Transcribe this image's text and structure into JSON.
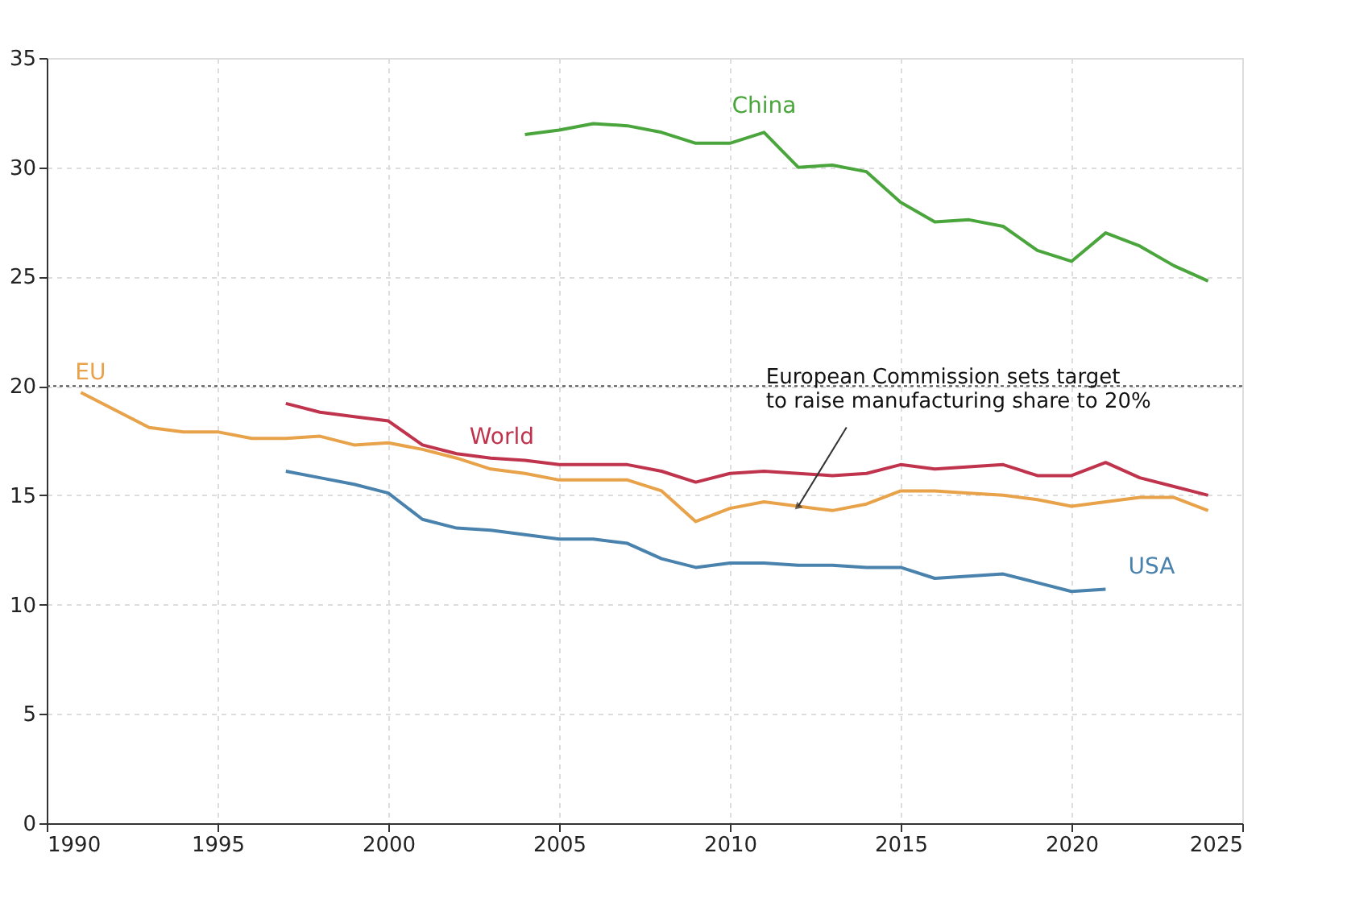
{
  "chart_data": {
    "type": "line",
    "xlim": [
      1990,
      2025
    ],
    "xticks": [
      1990,
      1995,
      2000,
      2005,
      2010,
      2015,
      2020,
      2025
    ],
    "ylim": [
      0,
      35
    ],
    "yticks": [
      0,
      5,
      10,
      15,
      20,
      25,
      30,
      35
    ],
    "grid": true,
    "marker": "none",
    "line_style": "solid",
    "series": [
      {
        "name": "China",
        "color": "#4aa63c",
        "x": [
          2004,
          2005,
          2006,
          2007,
          2008,
          2009,
          2010,
          2011,
          2012,
          2013,
          2014,
          2015,
          2016,
          2017,
          2018,
          2019,
          2020,
          2021,
          2022,
          2023,
          2024
        ],
        "values": [
          31.5,
          31.7,
          32.0,
          31.9,
          31.6,
          31.1,
          31.1,
          31.6,
          30.0,
          30.1,
          29.8,
          28.4,
          27.5,
          27.6,
          27.3,
          26.2,
          25.7,
          27.0,
          26.4,
          25.5,
          24.8
        ]
      },
      {
        "name": "EU",
        "color": "#e8a24a",
        "x": [
          1991,
          1992,
          1993,
          1994,
          1995,
          1996,
          1997,
          1998,
          1999,
          2000,
          2001,
          2002,
          2003,
          2004,
          2005,
          2006,
          2007,
          2008,
          2009,
          2010,
          2011,
          2012,
          2013,
          2014,
          2015,
          2016,
          2017,
          2018,
          2019,
          2020,
          2021,
          2022,
          2023,
          2024
        ],
        "values": [
          19.7,
          18.9,
          18.1,
          17.9,
          17.9,
          17.6,
          17.6,
          17.7,
          17.3,
          17.4,
          17.1,
          16.7,
          16.2,
          16.0,
          15.7,
          15.7,
          15.7,
          15.2,
          13.8,
          14.4,
          14.7,
          14.5,
          14.3,
          14.6,
          15.2,
          15.2,
          15.1,
          15.0,
          14.8,
          14.5,
          14.7,
          14.9,
          14.9,
          14.3
        ]
      },
      {
        "name": "World",
        "color": "#c0334d",
        "x": [
          1997,
          1998,
          1999,
          2000,
          2001,
          2002,
          2003,
          2004,
          2005,
          2006,
          2007,
          2008,
          2009,
          2010,
          2011,
          2012,
          2013,
          2014,
          2015,
          2016,
          2017,
          2018,
          2019,
          2020,
          2021,
          2022,
          2023,
          2024
        ],
        "values": [
          19.2,
          18.8,
          18.6,
          18.4,
          17.3,
          16.9,
          16.7,
          16.6,
          16.4,
          16.4,
          16.4,
          16.1,
          15.6,
          16.0,
          16.1,
          16.0,
          15.9,
          16.0,
          16.4,
          16.2,
          16.3,
          16.4,
          15.9,
          15.9,
          16.5,
          15.8,
          15.4,
          15.0
        ]
      },
      {
        "name": "USA",
        "color": "#4a82ae",
        "x": [
          1997,
          1998,
          1999,
          2000,
          2001,
          2002,
          2003,
          2004,
          2005,
          2006,
          2007,
          2008,
          2009,
          2010,
          2011,
          2012,
          2013,
          2014,
          2015,
          2016,
          2017,
          2018,
          2019,
          2020,
          2021
        ],
        "values": [
          16.1,
          15.8,
          15.5,
          15.1,
          13.9,
          13.5,
          13.4,
          13.2,
          13.0,
          13.0,
          12.8,
          12.1,
          11.7,
          11.9,
          11.9,
          11.8,
          11.8,
          11.7,
          11.7,
          11.2,
          11.3,
          11.4,
          11.0,
          10.6,
          10.7
        ]
      }
    ],
    "ref_lines": [
      {
        "axis": "y",
        "value": 20,
        "color": "#555555",
        "line_style": "dotted"
      }
    ],
    "annotations": [
      {
        "text": "European Commission sets target\nto raise manufacturing share to 20%",
        "x": 2012,
        "y": 14.5
      }
    ]
  }
}
